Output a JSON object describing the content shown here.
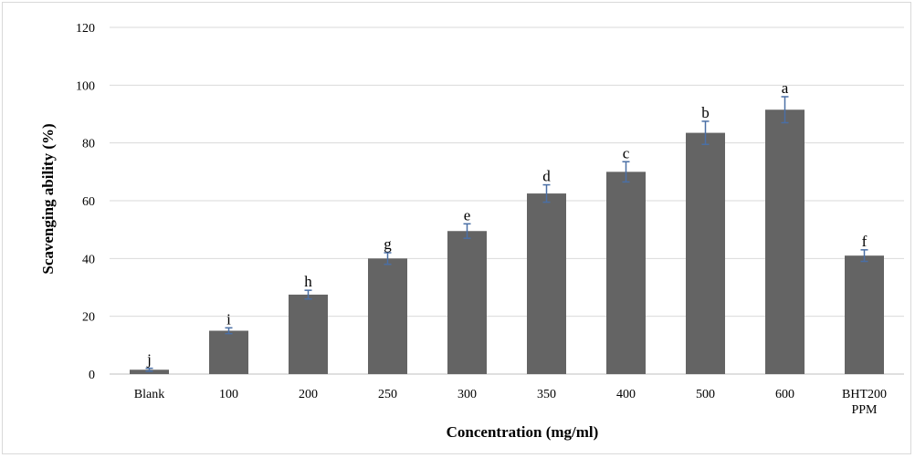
{
  "chart_data": {
    "type": "bar",
    "categories": [
      "Blank",
      "100",
      "200",
      "250",
      "300",
      "350",
      "400",
      "500",
      "600",
      "BHT200 PPM"
    ],
    "category_lines": [
      [
        "Blank"
      ],
      [
        "100"
      ],
      [
        "200"
      ],
      [
        "250"
      ],
      [
        "300"
      ],
      [
        "350"
      ],
      [
        "400"
      ],
      [
        "500"
      ],
      [
        "600"
      ],
      [
        "BHT200",
        "PPM"
      ]
    ],
    "values": [
      1.5,
      15,
      27.5,
      40,
      49.5,
      62.5,
      70,
      83.5,
      91.5,
      41
    ],
    "errors": [
      0.5,
      1,
      1.5,
      2,
      2.5,
      3,
      3.5,
      4,
      4.5,
      2
    ],
    "significance_labels": [
      "j",
      "i",
      "h",
      "g",
      "e",
      "d",
      "c",
      "b",
      "a",
      "f"
    ],
    "xlabel": "Concentration (mg/ml)",
    "ylabel": "Scavenging ability (%)",
    "ylim": [
      0,
      120
    ],
    "yticks": [
      0,
      20,
      40,
      60,
      80,
      100,
      120
    ],
    "grid": true,
    "bar_color": "#646464",
    "error_bar_color": "#4a6fa5",
    "grid_color": "#d9d9d9"
  }
}
